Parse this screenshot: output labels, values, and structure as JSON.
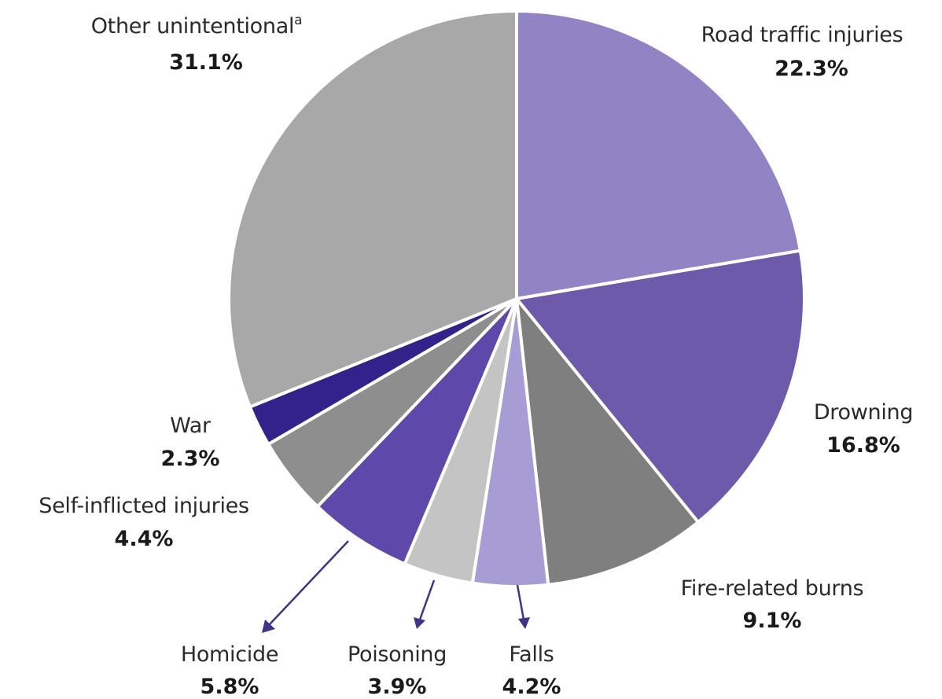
{
  "chart_data": {
    "type": "pie",
    "title": "",
    "start_angle_deg": 0,
    "direction": "clockwise",
    "legend": "none",
    "slices": [
      {
        "label": "Road traffic injuries",
        "value": 22.3,
        "value_label": "22.3%",
        "color": "#9283c4"
      },
      {
        "label": "Drowning",
        "value": 16.8,
        "value_label": "16.8%",
        "color": "#6e5aaa"
      },
      {
        "label": "Fire-related burns",
        "value": 9.1,
        "value_label": "9.1%",
        "color": "#7f7f7f"
      },
      {
        "label": "Falls",
        "value": 4.2,
        "value_label": "4.2%",
        "color": "#a79cd3"
      },
      {
        "label": "Poisoning",
        "value": 3.9,
        "value_label": "3.9%",
        "color": "#c4c4c4"
      },
      {
        "label": "Homicide",
        "value": 5.8,
        "value_label": "5.8%",
        "color": "#5e49aa"
      },
      {
        "label": "Self-inflicted injuries",
        "value": 4.4,
        "value_label": "4.4%",
        "color": "#8e8e8e"
      },
      {
        "label": "War",
        "value": 2.3,
        "value_label": "2.3%",
        "color": "#33228a"
      },
      {
        "label": "Other unintentional",
        "label_superscript": "a",
        "value": 31.1,
        "value_label": "31.1%",
        "color": "#a8a8a8"
      }
    ]
  }
}
